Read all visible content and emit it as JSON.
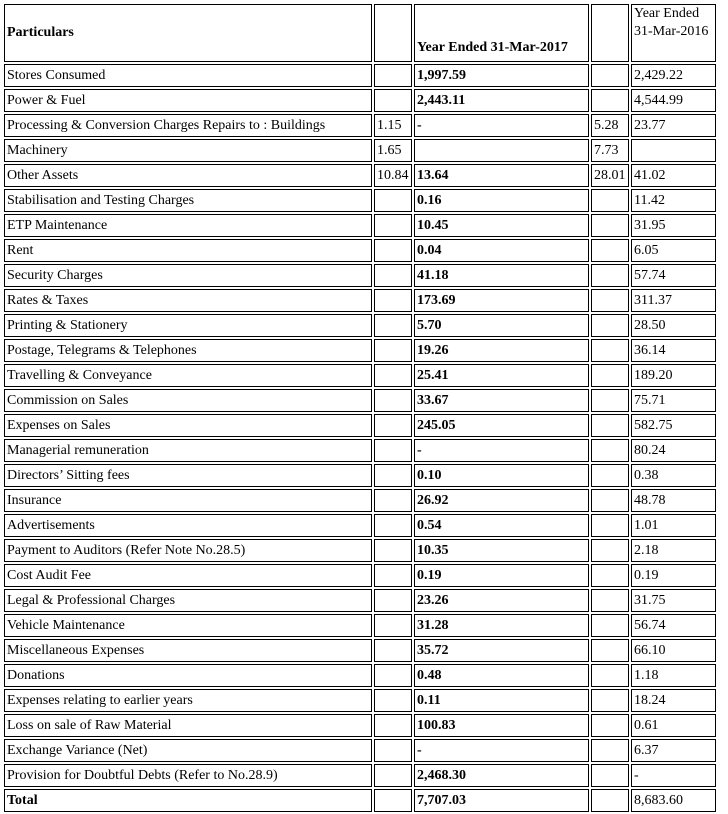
{
  "table": {
    "header": {
      "particulars": "Particulars",
      "col_2017": "Year Ended 31-Mar-2017",
      "col_2016_line1": "Year Ended",
      "col_2016_line2": "31-Mar-2016"
    },
    "rows": [
      {
        "label": "Stores Consumed",
        "sub17": "",
        "v17": "1,997.59",
        "sub16": "",
        "v16": "2,429.22"
      },
      {
        "label": "Power & Fuel",
        "sub17": "",
        "v17": "2,443.11",
        "sub16": "",
        "v16": "4,544.99"
      },
      {
        "label": "Processing & Conversion Charges Repairs to : Buildings",
        "sub17": "1.15",
        "v17": "-",
        "sub16": "5.28",
        "v16": "23.77"
      },
      {
        "label": "Machinery",
        "sub17": "1.65",
        "v17": "",
        "sub16": "7.73",
        "v16": ""
      },
      {
        "label": "Other Assets",
        "sub17": "10.84",
        "v17": "13.64",
        "sub16": "28.01",
        "v16": "41.02"
      },
      {
        "label": "Stabilisation and Testing Charges",
        "sub17": "",
        "v17": "0.16",
        "sub16": "",
        "v16": "11.42"
      },
      {
        "label": "ETP Maintenance",
        "sub17": "",
        "v17": "10.45",
        "sub16": "",
        "v16": "31.95"
      },
      {
        "label": "Rent",
        "sub17": "",
        "v17": "0.04",
        "sub16": "",
        "v16": "6.05"
      },
      {
        "label": "Security Charges",
        "sub17": "",
        "v17": "41.18",
        "sub16": "",
        "v16": "57.74"
      },
      {
        "label": "Rates & Taxes",
        "sub17": "",
        "v17": "173.69",
        "sub16": "",
        "v16": "311.37"
      },
      {
        "label": "Printing & Stationery",
        "sub17": "",
        "v17": "5.70",
        "sub16": "",
        "v16": "28.50"
      },
      {
        "label": "Postage, Telegrams & Telephones",
        "sub17": "",
        "v17": "19.26",
        "sub16": "",
        "v16": "36.14"
      },
      {
        "label": "Travelling & Conveyance",
        "sub17": "",
        "v17": "25.41",
        "sub16": "",
        "v16": "189.20"
      },
      {
        "label": "Commission on Sales",
        "sub17": "",
        "v17": "33.67",
        "sub16": "",
        "v16": "75.71"
      },
      {
        "label": "Expenses on Sales",
        "sub17": "",
        "v17": "245.05",
        "sub16": "",
        "v16": "582.75"
      },
      {
        "label": "Managerial remuneration",
        "sub17": "",
        "v17": "-",
        "sub16": "",
        "v16": "80.24"
      },
      {
        "label": "Directors’ Sitting fees",
        "sub17": "",
        "v17": "0.10",
        "sub16": "",
        "v16": "0.38"
      },
      {
        "label": "Insurance",
        "sub17": "",
        "v17": "26.92",
        "sub16": "",
        "v16": "48.78"
      },
      {
        "label": "Advertisements",
        "sub17": "",
        "v17": "0.54",
        "sub16": "",
        "v16": "1.01"
      },
      {
        "label": "Payment to Auditors (Refer Note No.28.5)",
        "sub17": "",
        "v17": "10.35",
        "sub16": "",
        "v16": "2.18"
      },
      {
        "label": "Cost Audit Fee",
        "sub17": "",
        "v17": "0.19",
        "sub16": "",
        "v16": "0.19"
      },
      {
        "label": "Legal & Professional Charges",
        "sub17": "",
        "v17": "23.26",
        "sub16": "",
        "v16": "31.75"
      },
      {
        "label": "Vehicle Maintenance",
        "sub17": "",
        "v17": "31.28",
        "sub16": "",
        "v16": "56.74"
      },
      {
        "label": "Miscellaneous Expenses",
        "sub17": "",
        "v17": "35.72",
        "sub16": "",
        "v16": "66.10"
      },
      {
        "label": "Donations",
        "sub17": "",
        "v17": "0.48",
        "sub16": "",
        "v16": "1.18"
      },
      {
        "label": "Expenses relating to earlier years",
        "sub17": "",
        "v17": "0.11",
        "sub16": "",
        "v16": "18.24"
      },
      {
        "label": "Loss on sale of Raw Material",
        "sub17": "",
        "v17": "100.83",
        "sub16": "",
        "v16": "0.61"
      },
      {
        "label": "Exchange Variance (Net)",
        "sub17": "",
        "v17": "-",
        "sub16": "",
        "v16": "6.37"
      },
      {
        "label": "Provision for Doubtful Debts (Refer to No.28.9)",
        "sub17": "",
        "v17": "2,468.30",
        "sub16": "",
        "v16": "-"
      },
      {
        "label": "Total",
        "sub17": "",
        "v17": "7,707.03",
        "sub16": "",
        "v16": "8,683.60"
      }
    ]
  }
}
